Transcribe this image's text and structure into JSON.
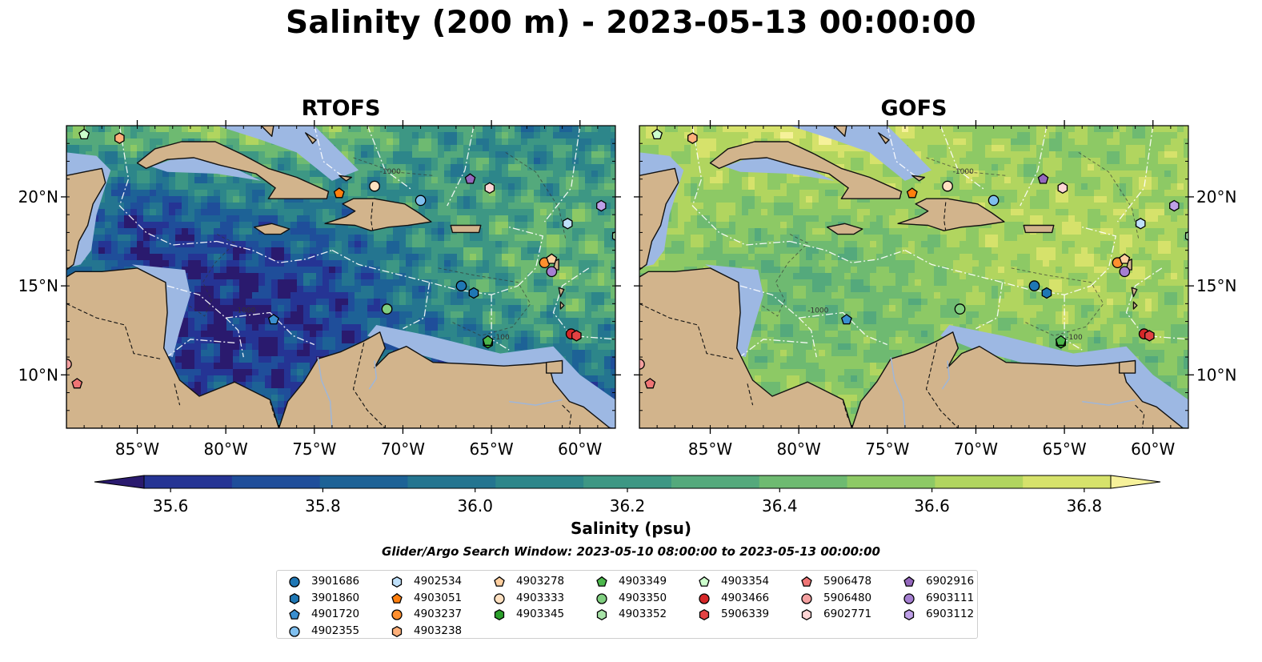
{
  "title": "Salinity (200 m) - 2023-05-13 00:00:00",
  "panels": [
    {
      "title": "RTOFS",
      "model": "rtofs"
    },
    {
      "title": "GOFS",
      "model": "gofs"
    }
  ],
  "map": {
    "lon_range": [
      -89,
      -58
    ],
    "lat_range": [
      7,
      24
    ],
    "lon_ticks": [
      {
        "value": -85,
        "label": "85°W"
      },
      {
        "value": -80,
        "label": "80°W"
      },
      {
        "value": -75,
        "label": "75°W"
      },
      {
        "value": -70,
        "label": "70°W"
      },
      {
        "value": -65,
        "label": "65°W"
      },
      {
        "value": -60,
        "label": "60°W"
      }
    ],
    "lat_ticks": [
      {
        "value": 20,
        "label": "20°N"
      },
      {
        "value": 15,
        "label": "15°N"
      },
      {
        "value": 10,
        "label": "10°N"
      }
    ],
    "contour_labels": [
      "-100",
      "-1000",
      "-1000"
    ],
    "colors": {
      "land": "#d2b48c",
      "shelf": "#9db8e3",
      "eez": "#ffffff",
      "coast": "#111111"
    }
  },
  "colorbar": {
    "label": "Salinity (psu)",
    "min": 35.5,
    "max": 36.9,
    "ticks": [
      {
        "value": 35.6,
        "label": "35.6"
      },
      {
        "value": 35.8,
        "label": "35.8"
      },
      {
        "value": 36.0,
        "label": "36.0"
      },
      {
        "value": 36.2,
        "label": "36.2"
      },
      {
        "value": 36.4,
        "label": "36.4"
      },
      {
        "value": 36.6,
        "label": "36.6"
      },
      {
        "value": 36.8,
        "label": "36.8"
      }
    ],
    "colors": [
      "#2a1a6e",
      "#253494",
      "#1f4e9a",
      "#1d6296",
      "#247590",
      "#2d868a",
      "#3d9784",
      "#54a97c",
      "#6eba71",
      "#8dc965",
      "#b1d55f",
      "#d6e26b",
      "#f6f19a"
    ]
  },
  "search_window": "Glider/Argo Search Window: 2023-05-10 08:00:00 to 2023-05-13 00:00:00",
  "legend": [
    {
      "id": "3901686",
      "color": "#1f77b4",
      "marker": "circle",
      "lon": -66.7,
      "lat": 15.0
    },
    {
      "id": "3901860",
      "color": "#1f77b4",
      "marker": "hexagon",
      "lon": -66.0,
      "lat": 14.6
    },
    {
      "id": "4901720",
      "color": "#3a8fd0",
      "marker": "pentagon",
      "lon": -77.3,
      "lat": 13.1
    },
    {
      "id": "4902355",
      "color": "#7fbfef",
      "marker": "circle",
      "lon": -69.0,
      "lat": 19.8
    },
    {
      "id": "4902534",
      "color": "#bfe0fa",
      "marker": "hexagon",
      "lon": -60.7,
      "lat": 18.5
    },
    {
      "id": "4903051",
      "color": "#ff7f0e",
      "marker": "pentagon",
      "lon": -73.6,
      "lat": 20.2
    },
    {
      "id": "4903237",
      "color": "#ff8f2e",
      "marker": "circle",
      "lon": -62.0,
      "lat": 16.3
    },
    {
      "id": "4903238",
      "color": "#ffb07a",
      "marker": "hexagon",
      "lon": -86.0,
      "lat": 23.3
    },
    {
      "id": "4903278",
      "color": "#ffcf9f",
      "marker": "pentagon",
      "lon": -61.6,
      "lat": 16.5
    },
    {
      "id": "4903333",
      "color": "#ffe0c0",
      "marker": "circle",
      "lon": -71.6,
      "lat": 20.6
    },
    {
      "id": "4903345",
      "color": "#2ca02c",
      "marker": "hexagon",
      "lon": -65.2,
      "lat": 11.8
    },
    {
      "id": "4903349",
      "color": "#4cb84c",
      "marker": "pentagon",
      "lon": -65.2,
      "lat": 11.9
    },
    {
      "id": "4903350",
      "color": "#80cf80",
      "marker": "circle",
      "lon": -70.9,
      "lat": 13.7
    },
    {
      "id": "4903352",
      "color": "#a7e3a7",
      "marker": "hexagon",
      "lon": -57.9,
      "lat": 17.8
    },
    {
      "id": "4903354",
      "color": "#ccffcc",
      "marker": "pentagon",
      "lon": -88.0,
      "lat": 23.5
    },
    {
      "id": "4903466",
      "color": "#d62728",
      "marker": "circle",
      "lon": -60.5,
      "lat": 12.3
    },
    {
      "id": "5906339",
      "color": "#e34243",
      "marker": "hexagon",
      "lon": -60.2,
      "lat": 12.2
    },
    {
      "id": "5906478",
      "color": "#ef7575",
      "marker": "pentagon",
      "lon": -88.4,
      "lat": 9.5
    },
    {
      "id": "5906480",
      "color": "#f4a0a0",
      "marker": "circle",
      "lon": -89.0,
      "lat": 10.6
    },
    {
      "id": "6902771",
      "color": "#ffd6d6",
      "marker": "hexagon",
      "lon": -65.1,
      "lat": 20.5
    },
    {
      "id": "6902916",
      "color": "#9467bd",
      "marker": "pentagon",
      "lon": -66.2,
      "lat": 21.0
    },
    {
      "id": "6903111",
      "color": "#a57fd1",
      "marker": "circle",
      "lon": -61.6,
      "lat": 15.8
    },
    {
      "id": "6903112",
      "color": "#bfa0e8",
      "marker": "hexagon",
      "lon": -58.8,
      "lat": 19.5
    }
  ]
}
